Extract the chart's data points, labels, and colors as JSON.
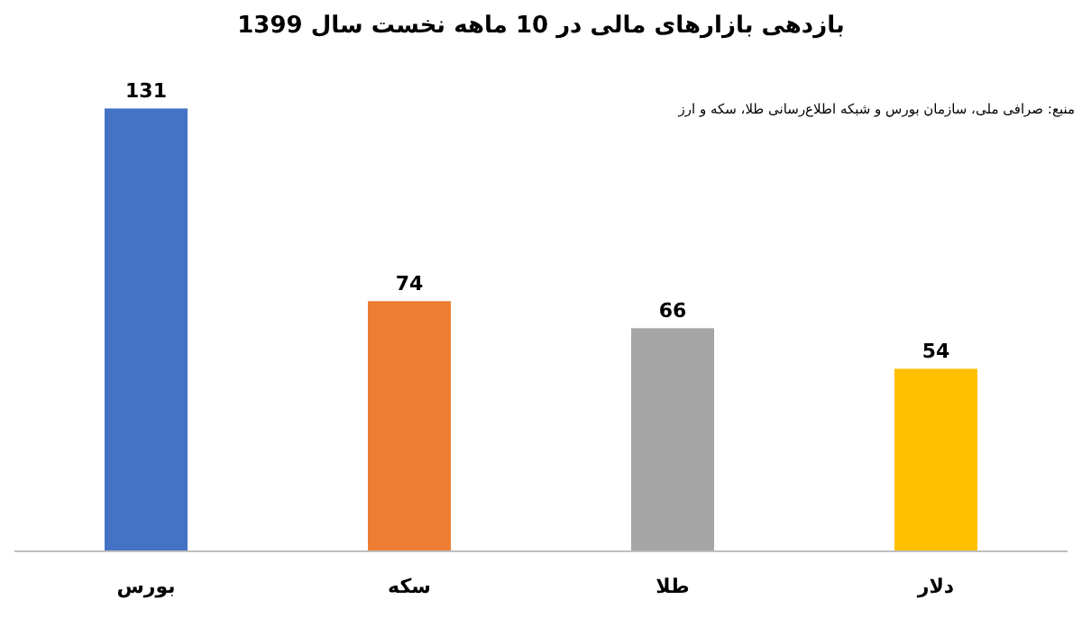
{
  "chart_data": {
    "type": "bar",
    "title": "بازدهی بازارهای مالی در 10 ماهه نخست سال 1399",
    "categories": [
      "بورس",
      "سکه",
      "طلا",
      "دلار"
    ],
    "values": [
      131,
      74,
      66,
      54
    ],
    "colors": [
      "#4472c4",
      "#ed7d31",
      "#a5a5a5",
      "#ffc000"
    ],
    "data_labels": true,
    "annotations": [
      "منبع: صرافی ملی، سازمان بورس و شبکه اطلاع‌رسانی طلا، سکه و ارز"
    ]
  }
}
